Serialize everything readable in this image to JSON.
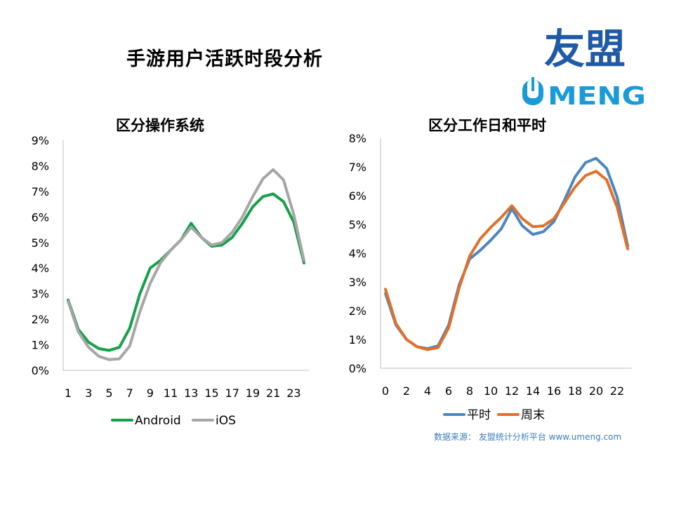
{
  "title": "手游用户活跃时段分析",
  "logo": {
    "cn": "友盟",
    "en": "UMENG",
    "colors": {
      "blue": "#1f5aa6",
      "teal": "#1a9bd7"
    }
  },
  "source": "数据来源： 友盟统计分析平台 www.umeng.com",
  "chart_data": [
    {
      "type": "line",
      "title": "区分操作系统",
      "x": [
        1,
        2,
        3,
        4,
        5,
        6,
        7,
        8,
        9,
        10,
        11,
        12,
        13,
        14,
        15,
        16,
        17,
        18,
        19,
        20,
        21,
        22,
        23,
        24
      ],
      "xticks": [
        1,
        3,
        5,
        7,
        9,
        11,
        13,
        15,
        17,
        19,
        21,
        23
      ],
      "ylim": [
        0,
        9
      ],
      "yticks": [
        "0%",
        "1%",
        "2%",
        "3%",
        "4%",
        "5%",
        "6%",
        "7%",
        "8%",
        "9%"
      ],
      "legend_position": "bottom",
      "series": [
        {
          "name": "Android",
          "color": "#16a04a",
          "values": [
            2.75,
            1.6,
            1.1,
            0.85,
            0.78,
            0.9,
            1.65,
            3.0,
            4.0,
            4.3,
            4.7,
            5.1,
            5.75,
            5.2,
            4.85,
            4.9,
            5.2,
            5.75,
            6.4,
            6.8,
            6.9,
            6.6,
            5.8,
            4.2
          ]
        },
        {
          "name": "iOS",
          "color": "#a6a6a6",
          "values": [
            2.7,
            1.5,
            0.9,
            0.55,
            0.42,
            0.45,
            0.95,
            2.3,
            3.4,
            4.2,
            4.7,
            5.1,
            5.6,
            5.2,
            4.9,
            5.0,
            5.4,
            6.0,
            6.8,
            7.5,
            7.85,
            7.45,
            6.1,
            4.3
          ]
        }
      ]
    },
    {
      "type": "line",
      "title": "区分工作日和平时",
      "x": [
        0,
        1,
        2,
        3,
        4,
        5,
        6,
        7,
        8,
        9,
        10,
        11,
        12,
        13,
        14,
        15,
        16,
        17,
        18,
        19,
        20,
        21,
        22,
        23
      ],
      "xticks": [
        0,
        2,
        4,
        6,
        8,
        10,
        12,
        14,
        16,
        18,
        20,
        22
      ],
      "ylim": [
        0,
        8
      ],
      "yticks": [
        "0%",
        "1%",
        "2%",
        "3%",
        "4%",
        "5%",
        "6%",
        "7%",
        "8%"
      ],
      "legend_position": "bottom",
      "series": [
        {
          "name": "平时",
          "color": "#4e86c0",
          "values": [
            2.6,
            1.5,
            1.0,
            0.75,
            0.68,
            0.78,
            1.5,
            2.9,
            3.8,
            4.1,
            4.45,
            4.85,
            5.55,
            4.95,
            4.65,
            4.75,
            5.1,
            5.85,
            6.65,
            7.15,
            7.3,
            6.95,
            5.95,
            4.25
          ]
        },
        {
          "name": "周末",
          "color": "#e0702a",
          "values": [
            2.75,
            1.55,
            1.0,
            0.75,
            0.65,
            0.72,
            1.4,
            2.8,
            3.9,
            4.5,
            4.9,
            5.25,
            5.65,
            5.2,
            4.92,
            4.95,
            5.2,
            5.75,
            6.3,
            6.7,
            6.85,
            6.55,
            5.6,
            4.15
          ]
        }
      ]
    }
  ]
}
